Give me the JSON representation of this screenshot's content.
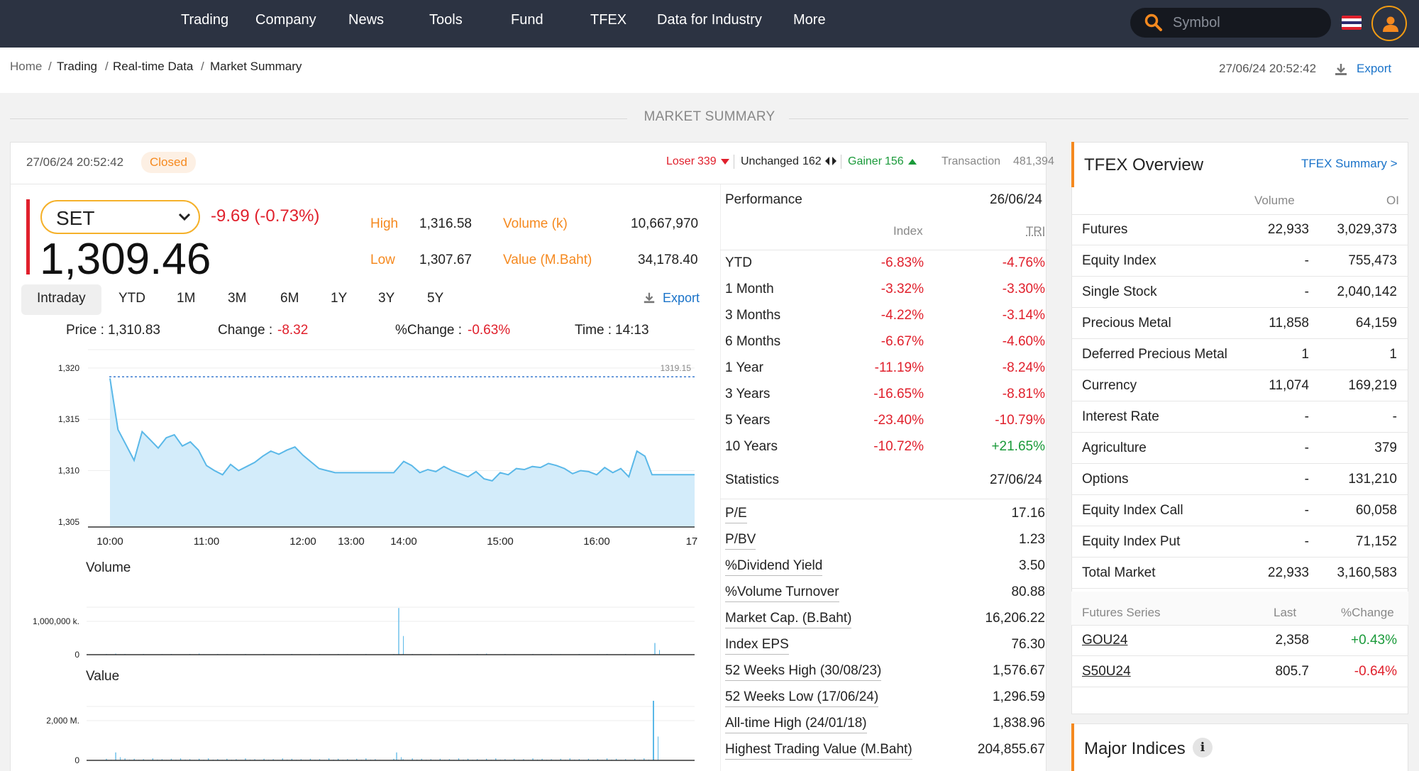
{
  "nav": {
    "items": [
      "Trading",
      "Company",
      "News",
      "Tools",
      "Fund",
      "TFEX",
      "Data for Industry",
      "More"
    ],
    "search_placeholder": "Symbol"
  },
  "breadcrumb": [
    "Home",
    "Trading",
    "Real-time Data",
    "Market Summary"
  ],
  "timestamp": "27/06/24 20:52:42",
  "export_label": "Export",
  "section_title": "MARKET SUMMARY",
  "status_bar": {
    "timestamp": "27/06/24 20:52:42",
    "status": "Closed",
    "loser_label": "Loser",
    "loser_value": "339",
    "unchanged_label": "Unchanged",
    "unchanged_value": "162",
    "gainer_label": "Gainer",
    "gainer_value": "156",
    "transaction_label": "Transaction",
    "transaction_value": "481,394"
  },
  "index": {
    "name": "SET",
    "value": "1,309.46",
    "change": "-9.69 (-0.73%)",
    "high_label": "High",
    "high": "1,316.58",
    "low_label": "Low",
    "low": "1,307.67",
    "volume_label": "Volume (k)",
    "volume": "10,667,970",
    "value_label": "Value (M.Baht)",
    "value_mbaht": "34,178.40"
  },
  "period_tabs": [
    "Intraday",
    "YTD",
    "1M",
    "3M",
    "6M",
    "1Y",
    "3Y",
    "5Y"
  ],
  "chart_export": "Export",
  "tooltip": {
    "price_label": "Price :",
    "price": "1,310.83",
    "change_label": "Change :",
    "change": "-8.32",
    "pct_label": "%Change :",
    "pct": "-0.63%",
    "time_label": "Time :",
    "time": "14:13"
  },
  "volume_title": "Volume",
  "value_title": "Value",
  "chart_data": [
    {
      "type": "area",
      "title": "",
      "x": [
        "10:00",
        "10:05",
        "10:10",
        "10:15",
        "10:20",
        "10:25",
        "10:30",
        "10:35",
        "10:40",
        "10:45",
        "10:50",
        "10:55",
        "11:00",
        "11:05",
        "11:10",
        "11:15",
        "11:20",
        "11:25",
        "11:30",
        "11:35",
        "11:40",
        "11:45",
        "11:50",
        "11:55",
        "12:00",
        "12:10",
        "12:20",
        "12:30",
        "13:00",
        "13:30",
        "14:00",
        "14:05",
        "14:10",
        "14:15",
        "14:20",
        "14:25",
        "14:30",
        "14:35",
        "14:40",
        "14:45",
        "14:50",
        "14:55",
        "15:00",
        "15:05",
        "15:10",
        "15:15",
        "15:20",
        "15:25",
        "15:30",
        "15:35",
        "15:40",
        "15:45",
        "15:50",
        "15:55",
        "16:00",
        "16:05",
        "16:10",
        "16:15",
        "16:20",
        "16:25",
        "16:30"
      ],
      "values": [
        1319.0,
        1314.0,
        1312.5,
        1311.0,
        1313.8,
        1313.0,
        1312.2,
        1313.2,
        1313.5,
        1312.4,
        1312.8,
        1312.0,
        1310.5,
        1310.0,
        1309.6,
        1310.6,
        1310.0,
        1310.4,
        1310.8,
        1311.4,
        1311.9,
        1311.6,
        1312.0,
        1312.3,
        1311.5,
        1310.2,
        1309.8,
        1309.8,
        1309.8,
        1309.8,
        1310.9,
        1310.5,
        1309.8,
        1310.1,
        1309.9,
        1310.4,
        1310.0,
        1309.7,
        1309.4,
        1309.9,
        1309.2,
        1309.0,
        1309.8,
        1309.6,
        1310.2,
        1310.1,
        1310.4,
        1310.3,
        1310.7,
        1310.5,
        1310.2,
        1309.7,
        1310.0,
        1309.9,
        1309.6,
        1310.3,
        1309.8,
        1310.2,
        1309.4,
        1311.9,
        1311.4
      ],
      "tail_value": 1309.6,
      "xlabel": "",
      "ylabel": "",
      "ylim": [
        1304.5,
        1322.0
      ],
      "yticks": [
        "1,305",
        "1,310",
        "1,315",
        "1,320"
      ],
      "xticks": [
        "10:00",
        "11:00",
        "12:00",
        "13:00",
        "14:00",
        "15:00",
        "16:00",
        "17:"
      ],
      "ref_line": 1319.15,
      "ref_label": "1319.15",
      "color": "#5ab8e8"
    },
    {
      "type": "bar",
      "title": "Volume",
      "yticks": [
        "0",
        "1,000,000 k."
      ],
      "spikes": [
        0.02,
        0.03,
        0.02,
        0.01,
        0.02,
        0.01,
        0.015,
        0.02,
        0.01,
        0.02,
        0.03,
        0.01,
        0.02,
        0.015,
        0.01,
        0.02,
        0.01,
        0.02,
        0.015,
        0.01,
        0.02,
        0.01,
        0.015,
        0.02,
        0.01,
        0.02,
        0.015,
        0.01,
        0.02,
        0.01,
        1.4,
        0.02,
        0.015,
        0.02,
        0.01,
        0.02,
        0.01,
        0.015,
        0.02,
        0.01,
        0.02,
        0.03,
        0.01,
        0.02,
        0.015,
        0.01,
        0.02,
        0.01,
        0.02,
        0.015,
        0.01,
        0.02,
        0.01,
        0.015,
        0.02,
        0.01,
        0.02,
        0.015,
        0.01,
        0.02,
        0.35
      ],
      "color": "#5ab8e8"
    },
    {
      "type": "bar",
      "title": "Value",
      "yticks": [
        "0",
        "2,000 M."
      ],
      "spikes": [
        0.04,
        0.2,
        0.05,
        0.04,
        0.03,
        0.05,
        0.03,
        0.04,
        0.05,
        0.03,
        0.04,
        0.05,
        0.03,
        0.04,
        0.03,
        0.05,
        0.03,
        0.04,
        0.03,
        0.05,
        0.04,
        0.03,
        0.04,
        0.03,
        0.05,
        0.04,
        0.03,
        0.04,
        0.05,
        0.03,
        0.2,
        0.04,
        0.03,
        0.05,
        0.04,
        0.03,
        0.04,
        0.03,
        0.05,
        0.04,
        0.03,
        0.04,
        0.05,
        0.03,
        0.04,
        0.03,
        0.05,
        0.04,
        0.03,
        0.04,
        0.05,
        0.03,
        0.04,
        0.03,
        0.05,
        0.04,
        0.03,
        0.04,
        0.05,
        0.03,
        1.5
      ],
      "color": "#5ab8e8"
    }
  ],
  "performance": {
    "title": "Performance",
    "date": "26/06/24",
    "col_index": "Index",
    "col_tri": "TRI",
    "rows": [
      {
        "label": "YTD",
        "index": "-6.83%",
        "tri": "-4.76%"
      },
      {
        "label": "1 Month",
        "index": "-3.32%",
        "tri": "-3.30%"
      },
      {
        "label": "3 Months",
        "index": "-4.22%",
        "tri": "-3.14%"
      },
      {
        "label": "6 Months",
        "index": "-6.67%",
        "tri": "-4.60%"
      },
      {
        "label": "1 Year",
        "index": "-11.19%",
        "tri": "-8.24%"
      },
      {
        "label": "3 Years",
        "index": "-16.65%",
        "tri": "-8.81%"
      },
      {
        "label": "5 Years",
        "index": "-23.40%",
        "tri": "-10.79%"
      },
      {
        "label": "10 Years",
        "index": "-10.72%",
        "tri": "+21.65%"
      }
    ]
  },
  "statistics": {
    "title": "Statistics",
    "date": "27/06/24",
    "rows": [
      {
        "label": "P/E",
        "value": "17.16"
      },
      {
        "label": "P/BV",
        "value": "1.23"
      },
      {
        "label": "%Dividend Yield",
        "value": "3.50"
      },
      {
        "label": "%Volume Turnover",
        "value": "80.88"
      },
      {
        "label": "Market Cap. (B.Baht)",
        "value": "16,206.22"
      },
      {
        "label": "Index EPS",
        "value": "76.30"
      },
      {
        "label": "52 Weeks High (30/08/23)",
        "value": "1,576.67"
      },
      {
        "label": "52 Weeks Low (17/06/24)",
        "value": "1,296.59"
      },
      {
        "label": "All-time High (24/01/18)",
        "value": "1,838.96"
      },
      {
        "label": "Highest Trading Value (M.Baht)",
        "value": "204,855.67"
      }
    ]
  },
  "tfex": {
    "title": "TFEX Overview",
    "summary_link": "TFEX Summary >",
    "col_volume": "Volume",
    "col_oi": "OI",
    "rows": [
      {
        "name": "Futures",
        "volume": "22,933",
        "oi": "3,029,373"
      },
      {
        "name": "Equity Index",
        "volume": "-",
        "oi": "755,473"
      },
      {
        "name": "Single Stock",
        "volume": "-",
        "oi": "2,040,142"
      },
      {
        "name": "Precious Metal",
        "volume": "11,858",
        "oi": "64,159"
      },
      {
        "name": "Deferred Precious Metal",
        "volume": "1",
        "oi": "1"
      },
      {
        "name": "Currency",
        "volume": "11,074",
        "oi": "169,219"
      },
      {
        "name": "Interest Rate",
        "volume": "-",
        "oi": "-"
      },
      {
        "name": "Agriculture",
        "volume": "-",
        "oi": "379"
      },
      {
        "name": "Options",
        "volume": "-",
        "oi": "131,210"
      },
      {
        "name": "Equity Index Call",
        "volume": "-",
        "oi": "60,058"
      },
      {
        "name": "Equity Index Put",
        "volume": "-",
        "oi": "71,152"
      },
      {
        "name": "Total Market",
        "volume": "22,933",
        "oi": "3,160,583"
      }
    ],
    "series_header": {
      "name": "Futures Series",
      "last": "Last",
      "change": "%Change"
    },
    "series": [
      {
        "name": "GOU24",
        "last": "2,358",
        "change": "+0.43%"
      },
      {
        "name": "S50U24",
        "last": "805.7",
        "change": "-0.64%"
      }
    ]
  },
  "major_indices": {
    "title": "Major Indices"
  },
  "colors": {
    "nav_bg": "#2c3342",
    "accent": "#f5891f",
    "up": "#1a9a3a",
    "down": "#e0202c",
    "link": "#1a73c9",
    "chart": "#5ab8e8"
  }
}
